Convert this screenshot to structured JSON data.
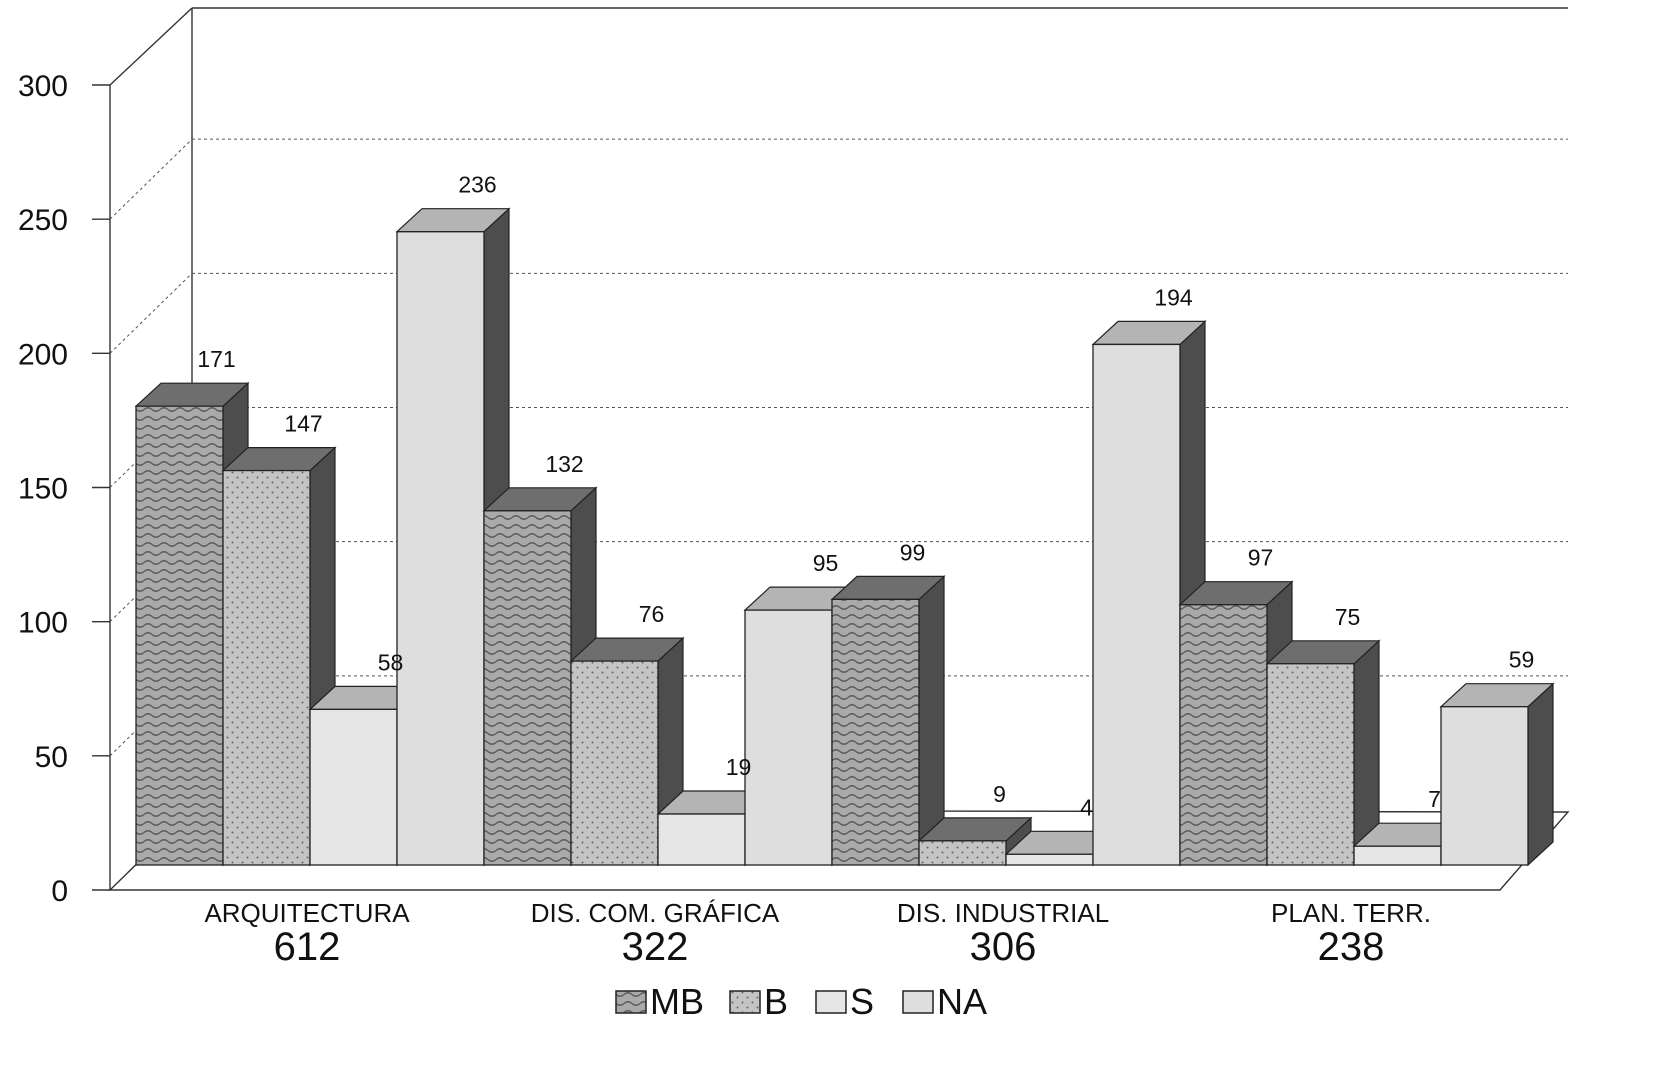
{
  "chart_data": {
    "type": "bar",
    "title": "",
    "xlabel": "",
    "ylabel": "",
    "ylim": [
      0,
      300
    ],
    "yticks": [
      0,
      50,
      100,
      150,
      200,
      250,
      300
    ],
    "grid": true,
    "three_d": true,
    "legend_position": "bottom",
    "categories": [
      {
        "label": "ARQUITECTURA",
        "total": "612"
      },
      {
        "label": "DIS. COM. GRÁFICA",
        "total": "322"
      },
      {
        "label": "DIS. INDUSTRIAL",
        "total": "306"
      },
      {
        "label": "PLAN. TERR.",
        "total": "238"
      }
    ],
    "series": [
      {
        "name": "MB",
        "values": [
          171,
          132,
          99,
          97
        ],
        "pattern": "waves",
        "color": "#a9a9a9"
      },
      {
        "name": "B",
        "values": [
          147,
          76,
          9,
          75
        ],
        "pattern": "dots",
        "color": "#c4c4c4"
      },
      {
        "name": "S",
        "values": [
          58,
          19,
          4,
          7
        ],
        "pattern": "plain",
        "color": "#e6e6e6"
      },
      {
        "name": "NA",
        "values": [
          236,
          95,
          194,
          59
        ],
        "pattern": "plain",
        "color": "#dedede"
      }
    ]
  }
}
